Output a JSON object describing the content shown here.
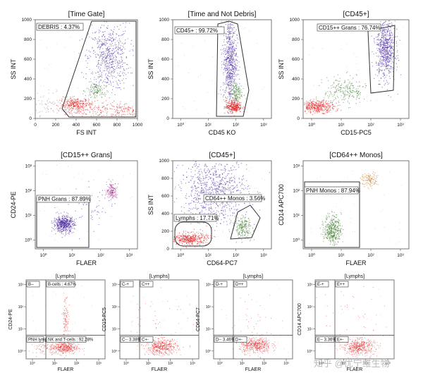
{
  "chart_data": [
    {
      "type": "scatter",
      "title": "[Time Gate]",
      "xlabel": "FS INT",
      "ylabel": "SS INT",
      "xscale": "linear",
      "xticks": [
        "0",
        "200",
        "400",
        "600",
        "800",
        "1000"
      ],
      "yticks": [
        "0",
        "200",
        "400",
        "600",
        "800",
        "1000"
      ],
      "gates": [
        {
          "label": "DEBRIS : 4.37%"
        }
      ],
      "series_colors": [
        "#4b2aa0",
        "#e02020",
        "#3d7a2a",
        "#999999"
      ]
    },
    {
      "type": "scatter",
      "title": "[Time and Not Debris]",
      "xlabel": "CD45 KO",
      "ylabel": "SS INT",
      "xscale": "log",
      "xticks": [
        "10⁰",
        "10¹",
        "10²",
        "10³"
      ],
      "yticks": [
        "0",
        "200",
        "400",
        "600",
        "800",
        "1000"
      ],
      "gates": [
        {
          "label": "CD45+ : 99.72%"
        }
      ],
      "series_colors": [
        "#4b2aa0",
        "#e02020",
        "#3d7a2a"
      ]
    },
    {
      "type": "scatter",
      "title": "[CD45+]",
      "xlabel": "CD15-PC5",
      "ylabel": "SS INT",
      "xscale": "log",
      "xticks": [
        "10⁰",
        "10¹",
        "10²",
        "10³"
      ],
      "yticks": [
        "0",
        "200",
        "400",
        "600",
        "800",
        "1000"
      ],
      "gates": [
        {
          "label": "CD15++ Grans : 76.74%"
        }
      ],
      "series_colors": [
        "#4b2aa0",
        "#e02020",
        "#3d7a2a"
      ]
    },
    {
      "type": "scatter",
      "title": "[CD15++ Grans]",
      "xlabel": "FLAER",
      "ylabel": "CD24-PE",
      "xscale": "log",
      "xticks": [
        "10⁰",
        "10¹",
        "10²",
        "10³"
      ],
      "yticks": [
        "10⁰",
        "10¹",
        "10²",
        "10³"
      ],
      "gates": [
        {
          "label": "PNH Grans : 87.89%"
        }
      ],
      "series_colors": [
        "#4b2aa0",
        "#b03a9a"
      ]
    },
    {
      "type": "scatter",
      "title": "[CD45+]",
      "xlabel": "CD64-PC7",
      "ylabel": "SS INT",
      "xscale": "log",
      "xticks": [
        "10⁰",
        "10¹",
        "10²",
        "10³"
      ],
      "yticks": [
        "0",
        "200",
        "400",
        "600",
        "800",
        "1000"
      ],
      "gates": [
        {
          "label": "CD64++ Monos : 3.56%"
        },
        {
          "label": "Lymphs : 17.71%"
        }
      ],
      "series_colors": [
        "#4b2aa0",
        "#e02020",
        "#3d7a2a"
      ]
    },
    {
      "type": "scatter",
      "title": "[CD64++ Monos]",
      "xlabel": "FLAER",
      "ylabel": "CD14 APC700",
      "xscale": "log",
      "xticks": [
        "10⁰",
        "10¹",
        "10²",
        "10³"
      ],
      "yticks": [
        "10⁰",
        "10¹",
        "10²",
        "10³"
      ],
      "gates": [
        {
          "label": "PNH Monos : 87.94%"
        }
      ],
      "series_colors": [
        "#3d7a2a",
        "#c77a1a"
      ]
    },
    {
      "type": "scatter",
      "title": "[Lymphs]",
      "xlabel": "FLAER",
      "ylabel": "CD24-PE",
      "xscale": "log",
      "xticks": [
        "10⁰",
        "10¹",
        "10²",
        "10³"
      ],
      "yticks": [
        "10⁰",
        "10¹",
        "10²",
        "10³"
      ],
      "quadrants": [
        "B--",
        "B-cells : 4.67%",
        "PNH lymp. 3.05%",
        "NK and T-cells : 92.28%"
      ],
      "series_colors": [
        "#e02020"
      ]
    },
    {
      "type": "scatter",
      "title": "[Lymphs]",
      "xlabel": "FLAER",
      "ylabel": "CD15-PC5",
      "xscale": "log",
      "xticks": [
        "10⁰",
        "10¹",
        "10²",
        "10³"
      ],
      "yticks": [
        "10⁰",
        "10¹",
        "10²",
        "10³"
      ],
      "quadrants": [
        "C-+",
        "C++",
        "C-- 3.38%",
        "C+-"
      ],
      "series_colors": [
        "#e02020"
      ]
    },
    {
      "type": "scatter",
      "title": "[Lymphs]",
      "xlabel": "FLAER",
      "ylabel": "CD64-PC7",
      "xscale": "log",
      "xticks": [
        "10⁰",
        "10¹",
        "10²",
        "10³"
      ],
      "yticks": [
        "10⁰",
        "10¹",
        "10²",
        "10³"
      ],
      "quadrants": [
        "D-+",
        "D++",
        "D-- 3.46%",
        "D+-"
      ],
      "series_colors": [
        "#e02020"
      ]
    },
    {
      "type": "scatter",
      "title": "[Lymphs]",
      "xlabel": "FLAER",
      "ylabel": "CD14 APC700",
      "xscale": "log",
      "xticks": [
        "10⁰",
        "10¹",
        "10²",
        "10³"
      ],
      "yticks": [
        "10⁰",
        "10¹",
        "10²",
        "10³"
      ],
      "quadrants": [
        "E-+",
        "E++",
        "E-- 3.36%",
        "E+-"
      ],
      "series_colors": [
        "#e02020"
      ]
    }
  ],
  "watermark": "知乎 @优宁维生物"
}
